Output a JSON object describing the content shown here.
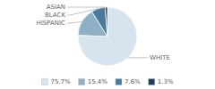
{
  "chart_data": {
    "type": "pie",
    "categories": [
      "WHITE",
      "HISPANIC",
      "BLACK",
      "ASIAN"
    ],
    "values": [
      75.7,
      15.4,
      7.6,
      1.3
    ],
    "value_labels": [
      "75.7%",
      "15.4%",
      "7.6%",
      "1.3%"
    ],
    "colors": [
      "#d6e4f0",
      "#8eafc4",
      "#4a7a9b",
      "#1e3f5a"
    ],
    "legend": "bottom"
  }
}
